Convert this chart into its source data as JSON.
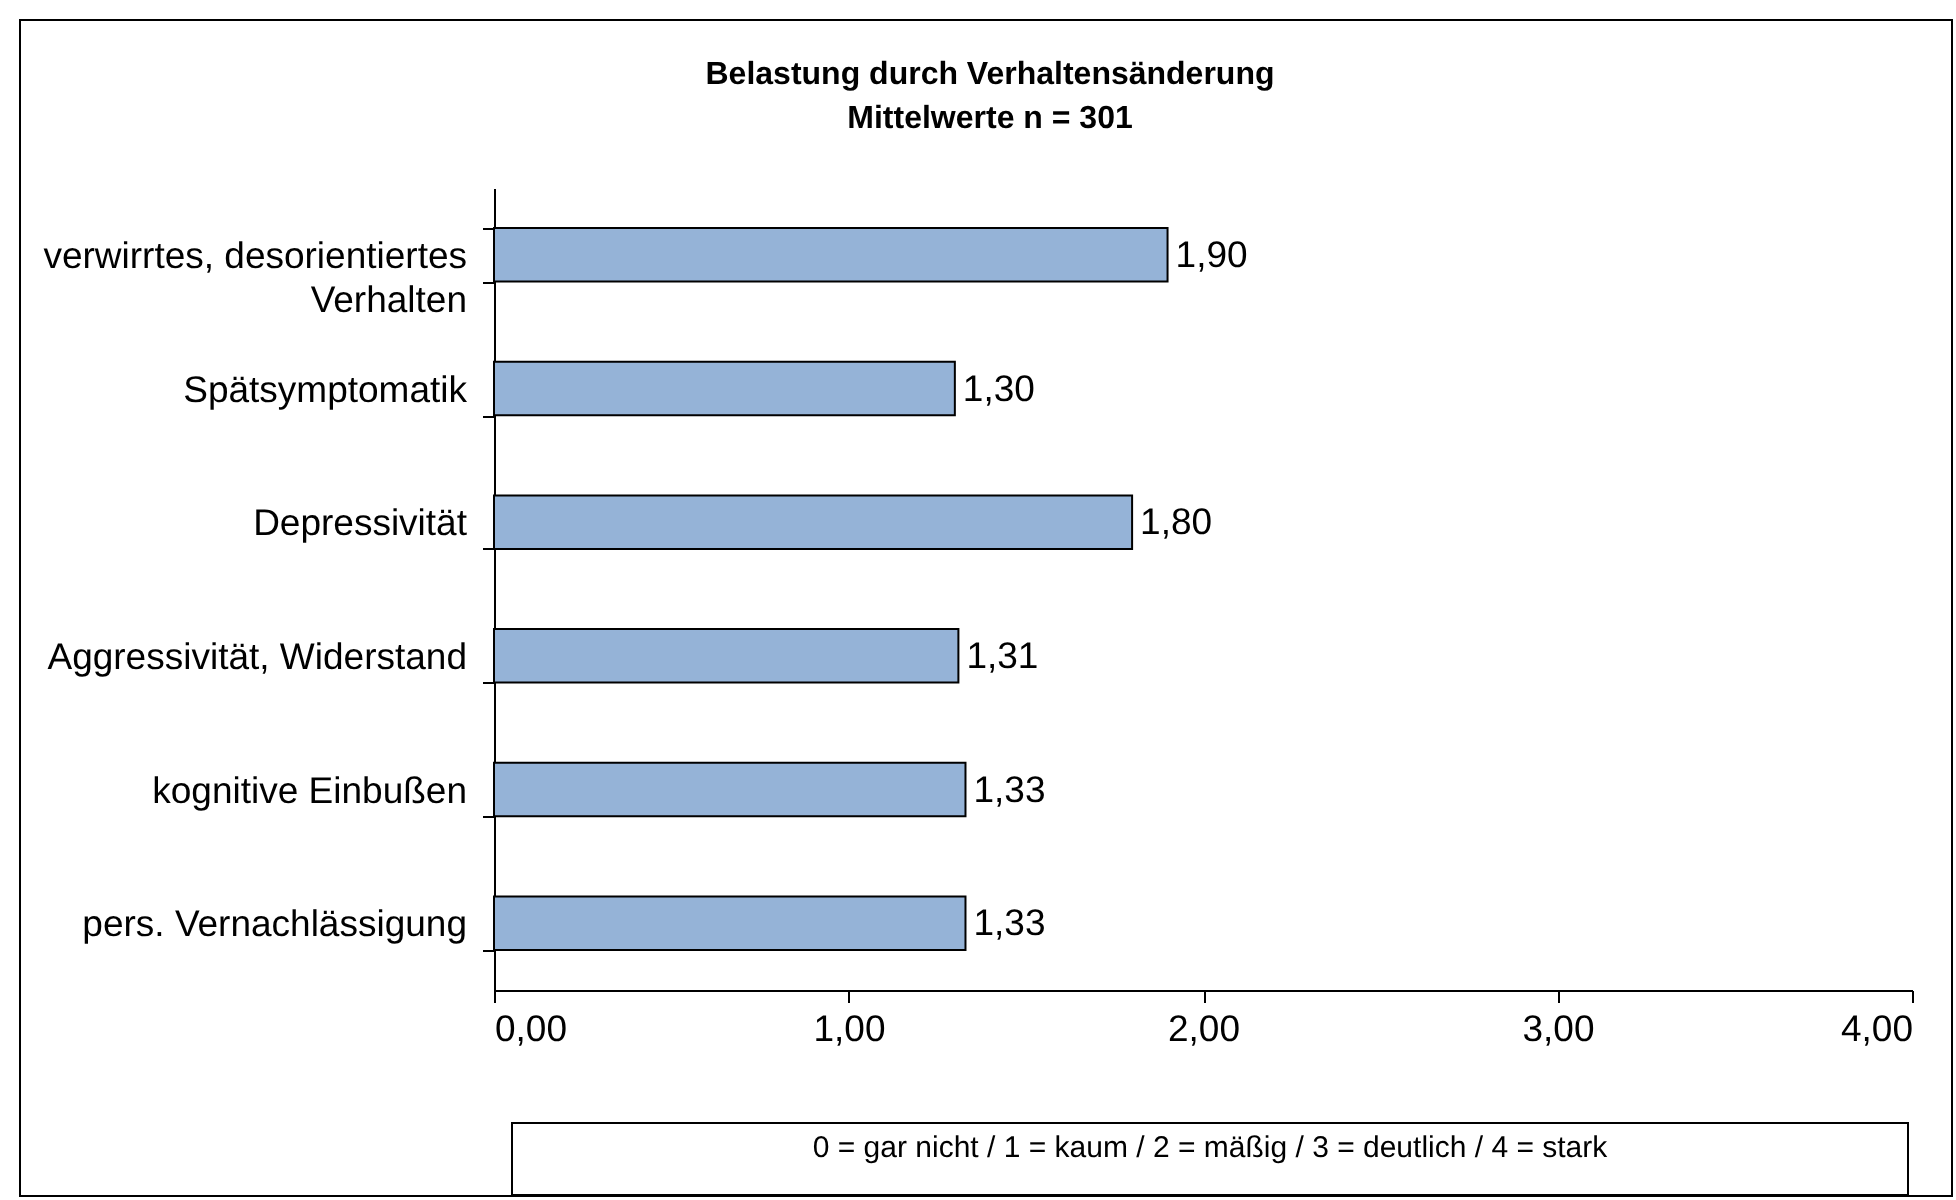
{
  "chart_data": {
    "type": "bar",
    "orientation": "horizontal",
    "title": "Belastung durch Verhaltensänderung",
    "subtitle": "Mittelwerte n = 301",
    "categories": [
      "verwirrtes, desorientiertes Verhalten",
      "Spätsymptomatik",
      "Depressivität",
      "Aggressivität, Widerstand",
      "kognitive Einbußen",
      "pers. Vernachlässigung"
    ],
    "values": [
      1.9,
      1.3,
      1.8,
      1.31,
      1.33,
      1.33
    ],
    "value_labels": [
      "1,90",
      "1,30",
      "1,80",
      "1,31",
      "1,33",
      "1,33"
    ],
    "color": "#95b3d7",
    "xlim": [
      0,
      4
    ],
    "xticks": [
      {
        "value": 0,
        "label": "0,00"
      },
      {
        "value": 1,
        "label": "1,00"
      },
      {
        "value": 2,
        "label": "2,00"
      },
      {
        "value": 3,
        "label": "3,00"
      },
      {
        "value": 4,
        "label": "4,00"
      }
    ],
    "annotations": [
      "0 =  gar nicht / 1 = kaum / 2 = mäßig  / 3 = deutlich / 4 = stark"
    ]
  }
}
